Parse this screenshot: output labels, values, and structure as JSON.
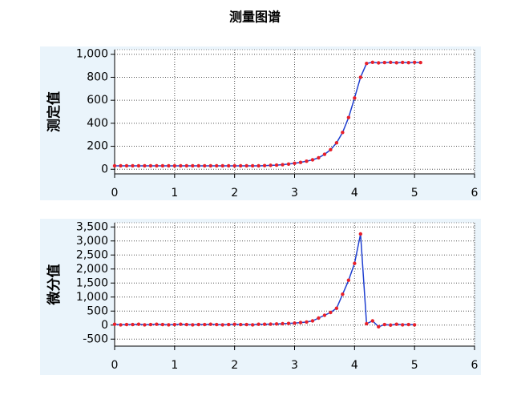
{
  "title": "测量图谱",
  "chart_data": [
    {
      "type": "line",
      "y_label": "测定值",
      "line_color": "#1f3fd0",
      "marker_color": "#e8202a",
      "grid": true,
      "x": [
        0,
        0.1,
        0.2,
        0.3,
        0.4,
        0.5,
        0.6,
        0.7,
        0.8,
        0.9,
        1,
        1.1,
        1.2,
        1.3,
        1.4,
        1.5,
        1.6,
        1.7,
        1.8,
        1.9,
        2,
        2.1,
        2.2,
        2.3,
        2.4,
        2.5,
        2.6,
        2.7,
        2.8,
        2.9,
        3,
        3.1,
        3.2,
        3.3,
        3.4,
        3.5,
        3.6,
        3.7,
        3.8,
        3.9,
        4,
        4.1,
        4.2,
        4.3,
        4.4,
        4.5,
        4.6,
        4.7,
        4.8,
        4.9,
        5,
        5.1
      ],
      "values": [
        30,
        30,
        30,
        30,
        30,
        30,
        30,
        30,
        30,
        30,
        30,
        30,
        30,
        30,
        30,
        30,
        30,
        30,
        30,
        30,
        30,
        30,
        30,
        30,
        30,
        32,
        34,
        36,
        40,
        45,
        52,
        60,
        70,
        82,
        100,
        130,
        170,
        230,
        320,
        450,
        620,
        800,
        920,
        930,
        925,
        928,
        930,
        926,
        929,
        927,
        930,
        928
      ],
      "xlim": [
        0,
        6
      ],
      "xticks": [
        0,
        1,
        2,
        3,
        4,
        5,
        6
      ],
      "ylim": [
        -40,
        1040
      ],
      "yticks": [
        0,
        200,
        400,
        600,
        800,
        {
          "value": 1000,
          "label": "1,000"
        }
      ]
    },
    {
      "type": "line",
      "y_label": "微分值",
      "line_color": "#1f3fd0",
      "marker_color": "#e8202a",
      "grid": true,
      "x": [
        0,
        0.1,
        0.2,
        0.3,
        0.4,
        0.5,
        0.6,
        0.7,
        0.8,
        0.9,
        1,
        1.1,
        1.2,
        1.3,
        1.4,
        1.5,
        1.6,
        1.7,
        1.8,
        1.9,
        2,
        2.1,
        2.2,
        2.3,
        2.4,
        2.5,
        2.6,
        2.7,
        2.8,
        2.9,
        3,
        3.1,
        3.2,
        3.3,
        3.4,
        3.5,
        3.6,
        3.7,
        3.8,
        3.9,
        4,
        4.1,
        4.2,
        4.3,
        4.4,
        4.5,
        4.6,
        4.7,
        4.8,
        4.9,
        5
      ],
      "values": [
        30,
        10,
        20,
        20,
        30,
        10,
        20,
        30,
        20,
        10,
        20,
        30,
        20,
        10,
        20,
        20,
        30,
        20,
        10,
        20,
        30,
        20,
        20,
        10,
        30,
        30,
        35,
        40,
        50,
        60,
        70,
        90,
        110,
        150,
        250,
        350,
        450,
        600,
        1100,
        1600,
        2200,
        3250,
        50,
        150,
        -60,
        20,
        0,
        30,
        10,
        20,
        10
      ],
      "xlim": [
        0,
        6
      ],
      "xticks": [
        0,
        1,
        2,
        3,
        4,
        5,
        6
      ],
      "ylim": [
        -750,
        3650
      ],
      "yticks": [
        -500,
        0,
        500,
        {
          "value": 1000,
          "label": "1,000"
        },
        {
          "value": 1500,
          "label": "1,500"
        },
        {
          "value": 2000,
          "label": "2,000"
        },
        {
          "value": 2500,
          "label": "2,500"
        },
        {
          "value": 3000,
          "label": "3,000"
        },
        {
          "value": 3500,
          "label": "3,500"
        }
      ]
    }
  ]
}
